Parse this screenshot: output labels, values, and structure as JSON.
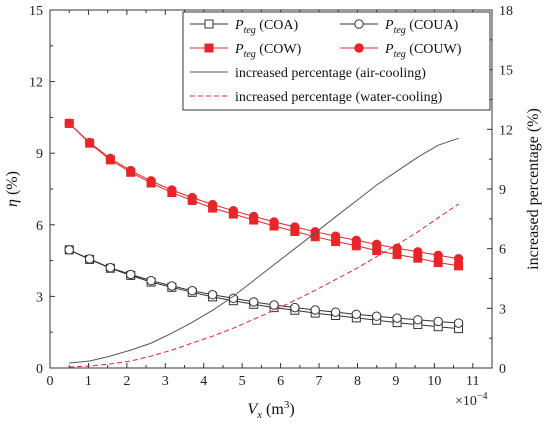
{
  "chart_data": {
    "type": "line",
    "x_tick_labels": [
      "0",
      "1",
      "2",
      "3",
      "4",
      "5",
      "6",
      "7",
      "8",
      "9",
      "10",
      "11"
    ],
    "x_multiplier": "×10",
    "x_multiplier_exp": "−4",
    "xlabel_main": "V",
    "xlabel_sub": "x",
    "xlabel_unit": " (m",
    "xlabel_unit_sup": "3",
    "xlabel_close": ")",
    "xlim": [
      0,
      11.5
    ],
    "ylabel_left_main": "η",
    "ylabel_left_unit": " (%)",
    "ylim_left": [
      0,
      15
    ],
    "left_tick_labels": [
      "0",
      "3",
      "6",
      "9",
      "12",
      "15"
    ],
    "ylabel_right": "increased percentage (%)",
    "ylim_right": [
      0,
      18
    ],
    "right_tick_labels": [
      "0",
      "3",
      "6",
      "9",
      "12",
      "15",
      "18"
    ],
    "legend_position": "top-right",
    "x": [
      0.5,
      1.03,
      1.57,
      2.1,
      2.63,
      3.17,
      3.7,
      4.23,
      4.77,
      5.3,
      5.83,
      6.37,
      6.9,
      7.43,
      7.97,
      8.5,
      9.03,
      9.57,
      10.1,
      10.63
    ],
    "series": [
      {
        "name": "P_teg (COA)",
        "axis": "left",
        "color": "#333333",
        "marker": "open-square",
        "line": "solid",
        "values": [
          4.95,
          4.55,
          4.18,
          3.88,
          3.6,
          3.38,
          3.17,
          2.98,
          2.82,
          2.67,
          2.53,
          2.42,
          2.3,
          2.2,
          2.1,
          2.0,
          1.9,
          1.82,
          1.73,
          1.65
        ]
      },
      {
        "name": "P_teg (COUA)",
        "axis": "left",
        "color": "#333333",
        "marker": "open-circle",
        "line": "solid",
        "values": [
          4.95,
          4.57,
          4.2,
          3.92,
          3.66,
          3.44,
          3.24,
          3.07,
          2.92,
          2.77,
          2.64,
          2.53,
          2.43,
          2.34,
          2.25,
          2.17,
          2.09,
          2.02,
          1.95,
          1.88
        ]
      },
      {
        "name": "P_teg (COW)",
        "axis": "left",
        "color": "#e8262a",
        "marker": "filled-square",
        "line": "solid",
        "values": [
          10.25,
          9.42,
          8.72,
          8.2,
          7.75,
          7.35,
          7.02,
          6.7,
          6.45,
          6.2,
          5.95,
          5.72,
          5.5,
          5.3,
          5.12,
          4.92,
          4.75,
          4.6,
          4.42,
          4.28
        ]
      },
      {
        "name": "P_teg (COUW)",
        "axis": "left",
        "color": "#e8262a",
        "marker": "filled-circle",
        "line": "solid",
        "values": [
          10.25,
          9.45,
          8.78,
          8.27,
          7.84,
          7.46,
          7.14,
          6.85,
          6.59,
          6.35,
          6.12,
          5.91,
          5.71,
          5.52,
          5.35,
          5.18,
          5.02,
          4.87,
          4.72,
          4.58
        ]
      },
      {
        "name": "increased percentage (air-cooling)",
        "axis": "right",
        "color": "#555555",
        "marker": "none",
        "line": "solid",
        "values": [
          0.25,
          0.35,
          0.6,
          0.9,
          1.25,
          1.75,
          2.3,
          2.9,
          3.6,
          4.4,
          5.2,
          6.0,
          6.8,
          7.6,
          8.4,
          9.2,
          9.9,
          10.6,
          11.2,
          11.55
        ]
      },
      {
        "name": "increased percentage (water-cooling)",
        "axis": "right",
        "color": "#e8262a",
        "marker": "none",
        "line": "dashed",
        "values": [
          0.05,
          0.1,
          0.2,
          0.35,
          0.6,
          0.9,
          1.25,
          1.6,
          2.0,
          2.45,
          2.9,
          3.4,
          3.9,
          4.45,
          5.0,
          5.6,
          6.2,
          6.85,
          7.55,
          8.25
        ]
      }
    ],
    "legend": [
      {
        "sym": "P",
        "sub": "teg",
        "text": " (COA)"
      },
      {
        "sym": "P",
        "sub": "teg",
        "text": " (COUA)"
      },
      {
        "sym": "P",
        "sub": "teg",
        "text": " (COW)"
      },
      {
        "sym": "P",
        "sub": "teg",
        "text": " (COUW)"
      },
      {
        "sym": "",
        "sub": "",
        "text": "increased percentage (air-cooling)"
      },
      {
        "sym": "",
        "sub": "",
        "text": "increased percentage (water-cooling)"
      }
    ]
  }
}
